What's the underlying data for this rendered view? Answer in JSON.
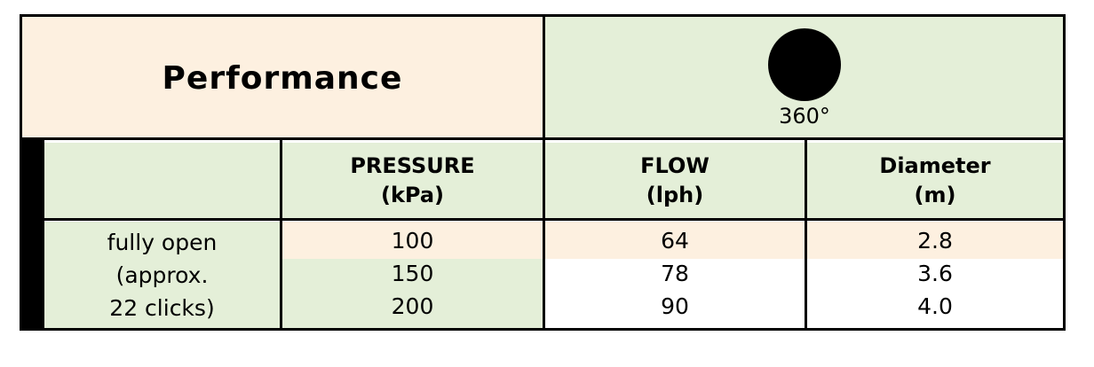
{
  "table": {
    "title": "Performance",
    "pattern_label": "360°",
    "headers": {
      "pressure": [
        "PRESSURE",
        "(kPa)"
      ],
      "flow": [
        "FLOW",
        "(lph)"
      ],
      "diameter": [
        "Diameter",
        "(m)"
      ]
    },
    "row_label": [
      "fully open",
      "(approx.",
      "22 clicks)"
    ],
    "rows": [
      {
        "pressure": "100",
        "flow": "64",
        "diameter": "2.8"
      },
      {
        "pressure": "150",
        "flow": "78",
        "diameter": "3.6"
      },
      {
        "pressure": "200",
        "flow": "90",
        "diameter": "4.0"
      }
    ]
  },
  "colors": {
    "peach": "#fdf0e0",
    "green": "#e4efd8",
    "border": "#000000"
  },
  "icons": {
    "pattern": "filled-circle-icon"
  }
}
